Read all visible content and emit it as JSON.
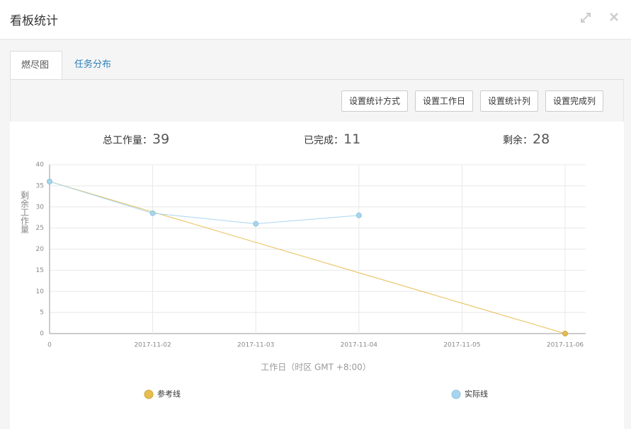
{
  "header": {
    "title": "看板统计"
  },
  "tabs": [
    "燃尽图",
    "任务分布"
  ],
  "buttons": [
    "设置统计方式",
    "设置工作日",
    "设置统计列",
    "设置完成列"
  ],
  "stats": [
    {
      "label": "总工作量：",
      "value": 39
    },
    {
      "label": "已完成：",
      "value": 11
    },
    {
      "label": "剩余：",
      "value": 28
    }
  ],
  "chart_data": {
    "type": "line",
    "categories": [
      "0",
      "2017-11-02",
      "2017-11-03",
      "2017-11-04",
      "2017-11-05",
      "2017-11-06"
    ],
    "series": [
      {
        "name": "参考线",
        "color": "#e6bd4f",
        "values": [
          36,
          28.8,
          21.6,
          14.4,
          7.2,
          0
        ]
      },
      {
        "name": "实际线",
        "color": "#a8d5ee",
        "values": [
          36,
          28.5,
          26,
          28,
          null,
          null
        ]
      }
    ],
    "ylim": [
      0,
      40
    ],
    "yticks": [
      0,
      5,
      10,
      15,
      20,
      25,
      30,
      35,
      40
    ],
    "y_label": "剩余工作量",
    "x_label": "工作日（时区 GMT +8:00）",
    "grid": true
  }
}
